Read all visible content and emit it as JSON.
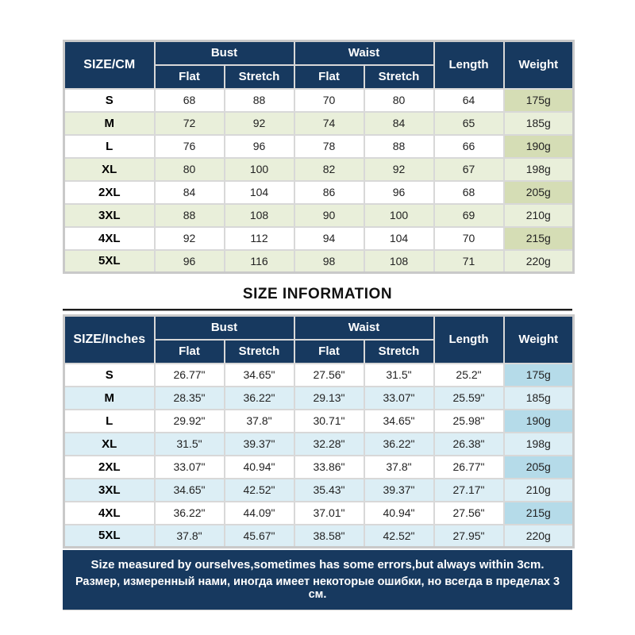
{
  "page_title": "SIZE INFORMATION",
  "colors": {
    "header_bg": "#17395f",
    "green_row": "#e9efda",
    "green_weight": "#d5ddb5",
    "blue_row": "#dceef5",
    "blue_weight": "#b5dbe9"
  },
  "tables": {
    "cm": {
      "corner_label": "SIZE/CM",
      "bust_label": "Bust",
      "waist_label": "Waist",
      "flat_label": "Flat",
      "stretch_label": "Stretch",
      "length_label": "Length",
      "weight_label": "Weight",
      "rows": [
        [
          "S",
          "68",
          "88",
          "70",
          "80",
          "64",
          "175g"
        ],
        [
          "M",
          "72",
          "92",
          "74",
          "84",
          "65",
          "185g"
        ],
        [
          "L",
          "76",
          "96",
          "78",
          "88",
          "66",
          "190g"
        ],
        [
          "XL",
          "80",
          "100",
          "82",
          "92",
          "67",
          "198g"
        ],
        [
          "2XL",
          "84",
          "104",
          "86",
          "96",
          "68",
          "205g"
        ],
        [
          "3XL",
          "88",
          "108",
          "90",
          "100",
          "69",
          "210g"
        ],
        [
          "4XL",
          "92",
          "112",
          "94",
          "104",
          "70",
          "215g"
        ],
        [
          "5XL",
          "96",
          "116",
          "98",
          "108",
          "71",
          "220g"
        ]
      ]
    },
    "inches": {
      "corner_label": "SIZE/Inches",
      "bust_label": "Bust",
      "waist_label": "Waist",
      "flat_label": "Flat",
      "stretch_label": "Stretch",
      "length_label": "Length",
      "weight_label": "Weight",
      "rows": [
        [
          "S",
          "26.77\"",
          "34.65\"",
          "27.56\"",
          "31.5\"",
          "25.2\"",
          "175g"
        ],
        [
          "M",
          "28.35\"",
          "36.22\"",
          "29.13\"",
          "33.07\"",
          "25.59\"",
          "185g"
        ],
        [
          "L",
          "29.92\"",
          "37.8\"",
          "30.71\"",
          "34.65\"",
          "25.98\"",
          "190g"
        ],
        [
          "XL",
          "31.5\"",
          "39.37\"",
          "32.28\"",
          "36.22\"",
          "26.38\"",
          "198g"
        ],
        [
          "2XL",
          "33.07\"",
          "40.94\"",
          "33.86\"",
          "37.8\"",
          "26.77\"",
          "205g"
        ],
        [
          "3XL",
          "34.65\"",
          "42.52\"",
          "35.43\"",
          "39.37\"",
          "27.17\"",
          "210g"
        ],
        [
          "4XL",
          "36.22\"",
          "44.09\"",
          "37.01\"",
          "40.94\"",
          "27.56\"",
          "215g"
        ],
        [
          "5XL",
          "37.8\"",
          "45.67\"",
          "38.58\"",
          "42.52\"",
          "27.95\"",
          "220g"
        ]
      ]
    }
  },
  "footer": {
    "line_en": "Size measured by ourselves,sometimes has some errors,but always within 3cm.",
    "line_ru": "Размер, измеренный нами, иногда имеет некоторые ошибки, но всегда в пределах 3 см."
  }
}
